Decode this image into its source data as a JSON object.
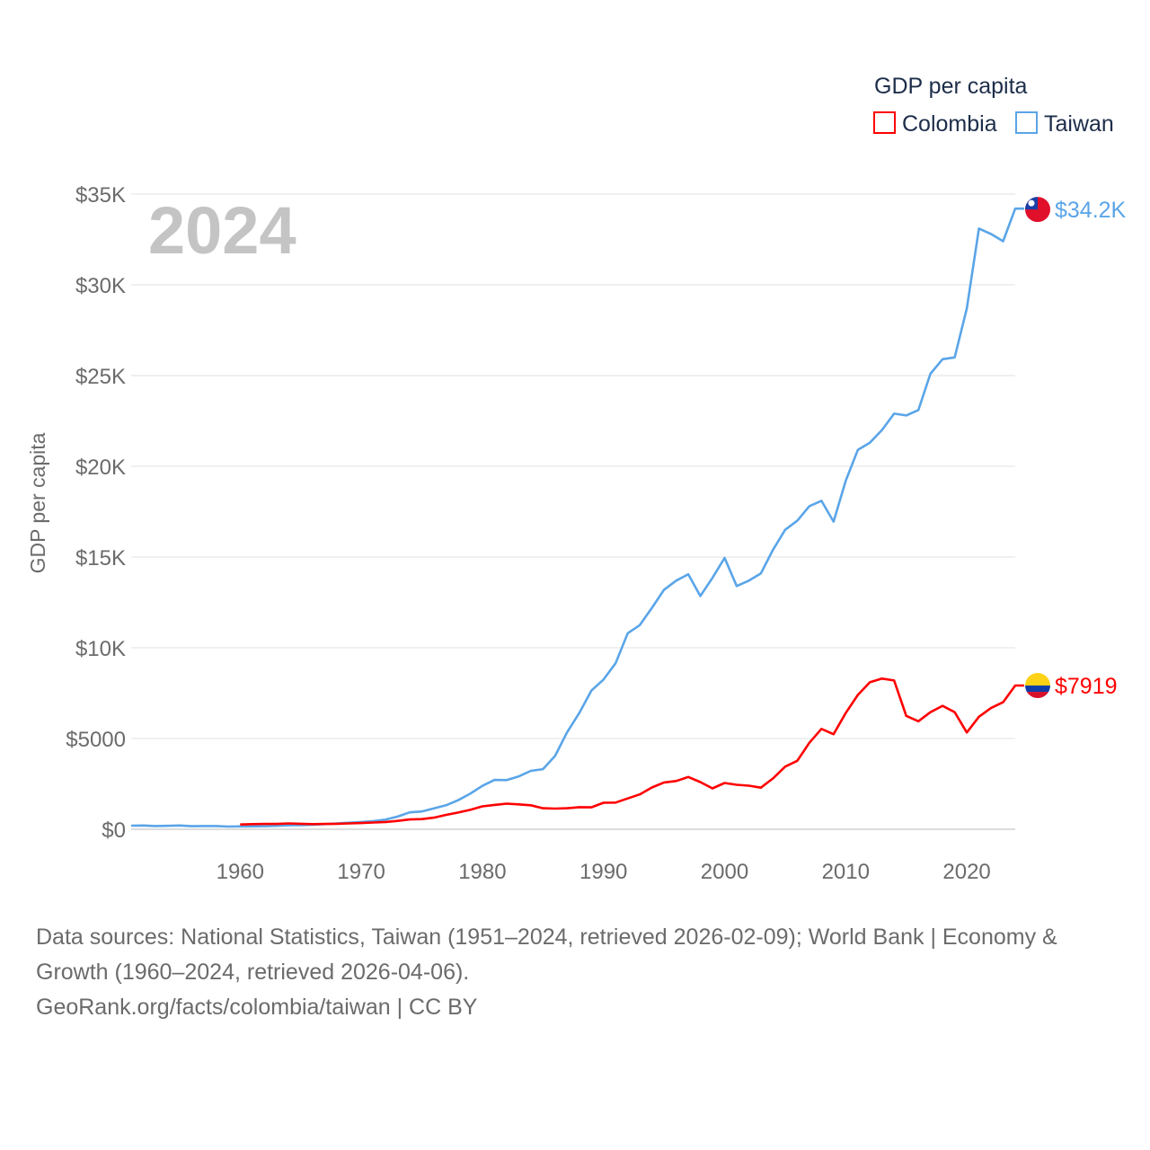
{
  "chart_data": {
    "type": "line",
    "title": "GDP per capita",
    "ylabel": "GDP per capita",
    "xlabel": "",
    "current_year": "2024",
    "xlim": [
      1951,
      2024
    ],
    "ylim": [
      0,
      35000
    ],
    "grid": true,
    "legend_position": "top-right",
    "x_ticks": [
      1960,
      1970,
      1980,
      1990,
      2000,
      2010,
      2020
    ],
    "y_ticks": [
      {
        "value": 0,
        "label": "$0"
      },
      {
        "value": 5000,
        "label": "$5000"
      },
      {
        "value": 10000,
        "label": "$10K"
      },
      {
        "value": 15000,
        "label": "$15K"
      },
      {
        "value": 20000,
        "label": "$20K"
      },
      {
        "value": 25000,
        "label": "$25K"
      },
      {
        "value": 30000,
        "label": "$30K"
      },
      {
        "value": 35000,
        "label": "$35K"
      }
    ],
    "series": [
      {
        "name": "Colombia",
        "color": "#ff0000",
        "flag": "colombia-flag",
        "end_label": "$7919",
        "start_year": 1960,
        "values": [
          260,
          280,
          290,
          290,
          320,
          300,
          280,
          290,
          300,
          320,
          340,
          370,
          400,
          460,
          540,
          560,
          640,
          790,
          920,
          1070,
          1260,
          1340,
          1410,
          1370,
          1320,
          1160,
          1140,
          1160,
          1220,
          1210,
          1460,
          1470,
          1700,
          1920,
          2300,
          2580,
          2660,
          2880,
          2600,
          2250,
          2550,
          2450,
          2400,
          2290,
          2800,
          3450,
          3770,
          4760,
          5530,
          5240,
          6400,
          7400,
          8100,
          8300,
          8200,
          6250,
          5950,
          6450,
          6800,
          6450,
          5330,
          6200,
          6680,
          7000,
          7919
        ]
      },
      {
        "name": "Taiwan",
        "color": "#5aa5e8",
        "flag": "taiwan-flag",
        "end_label": "$34.2K",
        "start_year": 1951,
        "values": [
          200,
          210,
          180,
          190,
          210,
          170,
          180,
          180,
          150,
          160,
          160,
          170,
          190,
          220,
          230,
          250,
          280,
          320,
          360,
          400,
          450,
          530,
          700,
          930,
          980,
          1150,
          1320,
          1600,
          1960,
          2390,
          2720,
          2710,
          2910,
          3220,
          3310,
          4040,
          5350,
          6400,
          7640,
          8250,
          9150,
          10800,
          11250,
          12200,
          13200,
          13700,
          14050,
          12850,
          13850,
          14950,
          13400,
          13700,
          14100,
          15400,
          16500,
          17000,
          17800,
          18100,
          16950,
          19200,
          20900,
          21300,
          22000,
          22900,
          22800,
          23100,
          25100,
          25900,
          26000,
          28700,
          33100,
          32800,
          32400,
          34200
        ]
      }
    ]
  },
  "footer": {
    "line1": "Data sources: National Statistics, Taiwan (1951–2024, retrieved 2026-02-09); World Bank | Economy &",
    "line2": "Growth (1960–2024, retrieved 2026-04-06).",
    "line3": "GeoRank.org/facts/colombia/taiwan | CC BY"
  }
}
